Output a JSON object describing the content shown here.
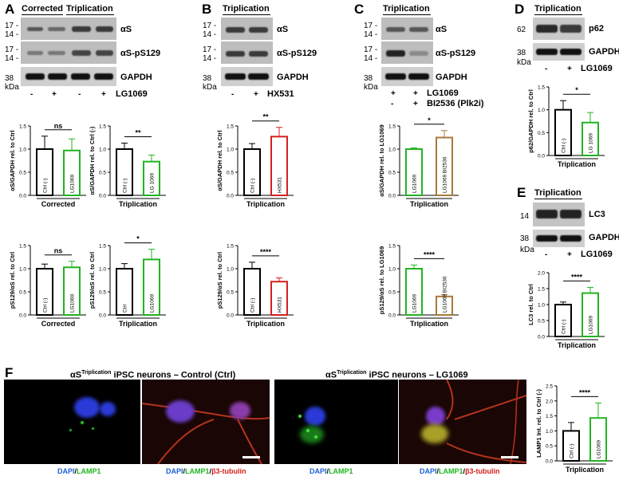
{
  "panels": {
    "A": {
      "letter": "A",
      "headers": [
        "Corrected",
        "Triplication"
      ],
      "blot_rows": [
        {
          "label": "αS",
          "markers": [
            "17 -",
            "14 -"
          ]
        },
        {
          "label": "αS-pS129",
          "markers": [
            "17 -",
            "14 -"
          ]
        },
        {
          "label": "GAPDH",
          "markers": [
            "38"
          ]
        }
      ],
      "kda": "kDa",
      "treat_signs": [
        "-",
        "+",
        "-",
        "+"
      ],
      "treat_label": "LG1069"
    },
    "B": {
      "letter": "B",
      "header": "Triplication",
      "blot_rows": [
        {
          "label": "αS",
          "markers": [
            "17 -",
            "14 -"
          ]
        },
        {
          "label": "αS-pS129",
          "markers": [
            "17 -",
            "14 -"
          ]
        },
        {
          "label": "GAPDH",
          "markers": [
            "38"
          ]
        }
      ],
      "kda": "kDa",
      "treat_signs": [
        "-",
        "+"
      ],
      "treat_label": "HX531"
    },
    "C": {
      "letter": "C",
      "header": "Triplication",
      "blot_rows": [
        {
          "label": "αS",
          "markers": [
            "17 -",
            "14 -"
          ]
        },
        {
          "label": "αS-pS129",
          "markers": [
            "17 -",
            "14 -"
          ]
        },
        {
          "label": "GAPDH",
          "markers": [
            "38"
          ]
        }
      ],
      "kda": "kDa",
      "treat_rows": [
        {
          "signs": [
            "+",
            "+"
          ],
          "label": "LG1069"
        },
        {
          "signs": [
            "-",
            "+"
          ],
          "label": "BI2536 (Plk2i)"
        }
      ]
    },
    "D": {
      "letter": "D",
      "header": "Triplication",
      "blot_rows": [
        {
          "label": "p62",
          "markers": [
            "62"
          ]
        },
        {
          "label": "GAPDH",
          "markers": [
            "38"
          ]
        }
      ],
      "kda": "kDa",
      "treat_signs": [
        "-",
        "+"
      ],
      "treat_label": "LG1069"
    },
    "E": {
      "letter": "E",
      "header": "Triplication",
      "blot_rows": [
        {
          "label": "LC3",
          "markers": [
            "14"
          ]
        },
        {
          "label": "GAPDH",
          "markers": [
            "38"
          ]
        }
      ],
      "kda": "kDa",
      "treat_signs": [
        "-",
        "+"
      ],
      "treat_label": "LG1069"
    },
    "F": {
      "letter": "F",
      "title_ctrl_prefix": "αS",
      "title_ctrl_sup": "Triplication",
      "title_ctrl_suffix": " iPSC neurons – Control (Ctrl)",
      "title_lg_prefix": "αS",
      "title_lg_sup": "Triplication",
      "title_lg_suffix": " iPSC neurons – LG1069",
      "captions": {
        "dapi": "DAPI",
        "slash": "/",
        "lamp1": "LAMP1",
        "slash2": "/",
        "tubulin": "β3-tubulin"
      }
    }
  },
  "colors": {
    "green": "#22b322",
    "red": "#d42020",
    "brown": "#a87a3a",
    "blue": "#1f5fd6"
  },
  "chart_data": [
    {
      "id": "A1",
      "type": "bar",
      "categories": [
        "Ctrl (-)",
        "LG1069"
      ],
      "values": [
        1.0,
        0.97
      ],
      "errors": [
        0.28,
        0.25
      ],
      "colors": [
        "black",
        "green"
      ],
      "ylabel": "αS/GAPDH rel. to Ctrl",
      "xlabel": "Corrected",
      "ylim": [
        0,
        1.5
      ],
      "yticks": [
        "0.0",
        "0.5",
        "1.0",
        "1.5"
      ],
      "sig": "ns"
    },
    {
      "id": "A2",
      "type": "bar",
      "categories": [
        "Ctrl (-)",
        "LG 1069"
      ],
      "values": [
        1.0,
        0.73
      ],
      "errors": [
        0.13,
        0.14
      ],
      "colors": [
        "black",
        "green"
      ],
      "ylabel": "αS/GAPDH rel. to Ctrl (-)",
      "xlabel": "Triplication",
      "ylim": [
        0,
        1.5
      ],
      "yticks": [
        "0.0",
        "0.5",
        "1.0",
        "1.5"
      ],
      "sig": "**"
    },
    {
      "id": "A3",
      "type": "bar",
      "categories": [
        "Ctrl (-)",
        "LG1069"
      ],
      "values": [
        1.0,
        1.03
      ],
      "errors": [
        0.1,
        0.13
      ],
      "colors": [
        "black",
        "green"
      ],
      "ylabel": "pS129/αS rel. to Ctrl",
      "xlabel": "Corrected",
      "ylim": [
        0,
        1.5
      ],
      "yticks": [
        "0.0",
        "0.5",
        "1.0",
        "1.5"
      ],
      "sig": "ns"
    },
    {
      "id": "A4",
      "type": "bar",
      "categories": [
        "Ctrl",
        "LG1069"
      ],
      "values": [
        1.0,
        1.2
      ],
      "errors": [
        0.11,
        0.22
      ],
      "colors": [
        "black",
        "green"
      ],
      "ylabel": "pS129/αS rel. to Ctrl",
      "xlabel": "Triplication",
      "ylim": [
        0,
        1.5
      ],
      "yticks": [
        "0.0",
        "0.5",
        "1.0",
        "1.5"
      ],
      "sig": "*"
    },
    {
      "id": "B1",
      "type": "bar",
      "categories": [
        "Ctrl (-)",
        "HX531"
      ],
      "values": [
        1.0,
        1.27
      ],
      "errors": [
        0.12,
        0.2
      ],
      "colors": [
        "black",
        "red"
      ],
      "ylabel": "αS/GAPDH rel. to Ctrl",
      "xlabel": "Triplication",
      "ylim": [
        0,
        1.5
      ],
      "yticks": [
        "0.0",
        "0.5",
        "1.0",
        "1.5"
      ],
      "sig": "**"
    },
    {
      "id": "B2",
      "type": "bar",
      "categories": [
        "Ctrl (-)",
        "HX531"
      ],
      "values": [
        1.0,
        0.72
      ],
      "errors": [
        0.14,
        0.08
      ],
      "colors": [
        "black",
        "red"
      ],
      "ylabel": "pS129/αS rel. to Ctrl",
      "xlabel": "Triplication",
      "ylim": [
        0,
        1.5
      ],
      "yticks": [
        "0.0",
        "0.5",
        "1.0",
        "1.5"
      ],
      "sig": "****"
    },
    {
      "id": "C1",
      "type": "bar",
      "categories": [
        "LG1069",
        "LG1069 BI2536"
      ],
      "values": [
        1.0,
        1.25
      ],
      "errors": [
        0.03,
        0.15
      ],
      "colors": [
        "green",
        "brown"
      ],
      "ylabel": "αS/GAPDH rel. to LG1069",
      "xlabel": "Triplication",
      "ylim": [
        0,
        1.5
      ],
      "yticks": [
        "0.0",
        "0.5",
        "1.0",
        "1.5"
      ],
      "sig": "*"
    },
    {
      "id": "C2",
      "type": "bar",
      "categories": [
        "LG1069",
        "LG1069 BI2536"
      ],
      "values": [
        1.0,
        0.4
      ],
      "errors": [
        0.08,
        0.04
      ],
      "colors": [
        "green",
        "brown"
      ],
      "ylabel": "pS129/αS rel. to LG1069",
      "xlabel": "Triplication",
      "ylim": [
        0,
        1.5
      ],
      "yticks": [
        "0.0",
        "0.5",
        "1.0",
        "1.5"
      ],
      "sig": "****"
    },
    {
      "id": "D1",
      "type": "bar",
      "categories": [
        "Ctrl (-)",
        "LG 1069"
      ],
      "values": [
        1.0,
        0.72
      ],
      "errors": [
        0.2,
        0.22
      ],
      "colors": [
        "black",
        "green"
      ],
      "ylabel": "p62/GAPDH rel. to Ctrl",
      "xlabel": "Triplication",
      "ylim": [
        0,
        1.5
      ],
      "yticks": [
        "0.0",
        "0.5",
        "1.0",
        "1.5"
      ],
      "sig": "*"
    },
    {
      "id": "E1",
      "type": "bar",
      "categories": [
        "Ctrl (-)",
        "LG1069"
      ],
      "values": [
        1.0,
        1.36
      ],
      "errors": [
        0.08,
        0.18
      ],
      "colors": [
        "black",
        "green"
      ],
      "ylabel": "LC3 rel. to Ctrl",
      "xlabel": "Triplication",
      "ylim": [
        0,
        2.0
      ],
      "yticks": [
        "0.0",
        "0.5",
        "1.0",
        "1.5",
        "2.0"
      ],
      "sig": "****"
    },
    {
      "id": "F1",
      "type": "bar",
      "categories": [
        "Ctrl (-)",
        "LG1069"
      ],
      "values": [
        1.0,
        1.43
      ],
      "errors": [
        0.28,
        0.5
      ],
      "colors": [
        "black",
        "green"
      ],
      "ylabel": "LAMP1 Int. rel. to Ctrl (-)",
      "xlabel": "Triplication",
      "ylim": [
        0,
        2.5
      ],
      "yticks": [
        "0.0",
        "0.5",
        "1.0",
        "1.5",
        "2.0",
        "2.5"
      ],
      "sig": "****"
    }
  ]
}
